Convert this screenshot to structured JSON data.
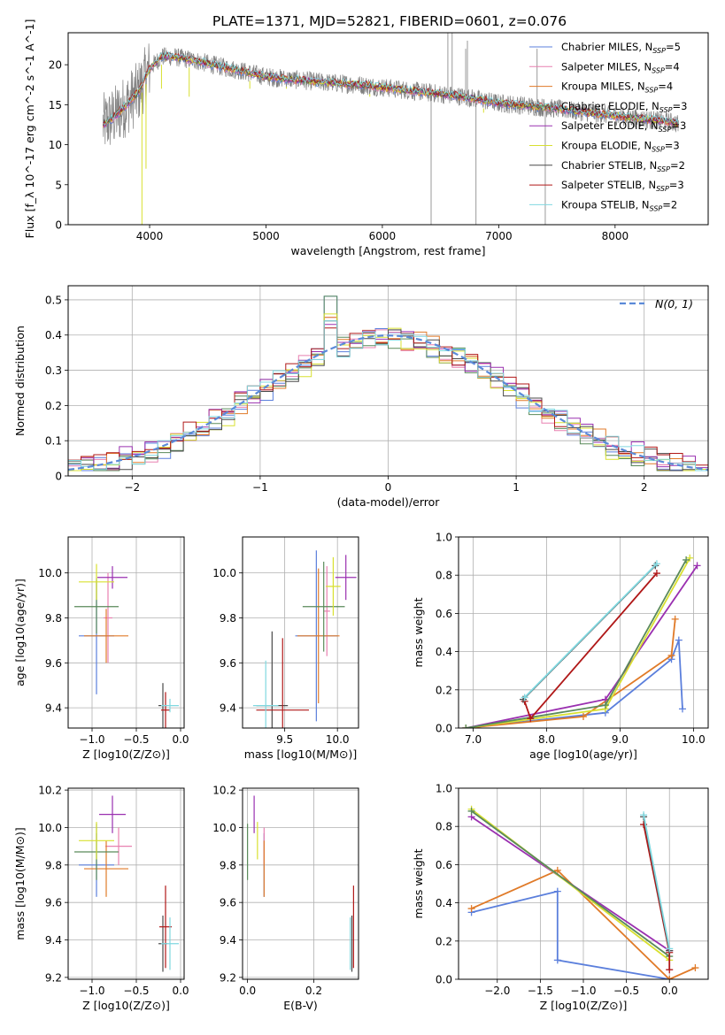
{
  "figure": {
    "title": "PLATE=1371, MJD=52821, FIBERID=0601, z=0.076"
  },
  "series_colors": {
    "Chabrier MILES": "#5b7fdc",
    "Salpeter MILES": "#e880b0",
    "Kroupa MILES": "#e07a28",
    "Chabrier ELODIE": "#5a8a5a",
    "Salpeter ELODIE": "#9a30b0",
    "Kroupa ELODIE": "#d8e030",
    "Chabrier STELIB": "#4a4a4a",
    "Salpeter STELIB": "#b01818",
    "Kroupa STELIB": "#80d8e0",
    "data": "#808080",
    "normal": "#5b8ad8"
  },
  "chart_data": [
    {
      "id": "spectrum",
      "type": "line",
      "xlabel": "wavelength [Angstrom, rest frame]",
      "ylabel": "Flux [f_λ 10^-17 erg cm^-2 s^-1 A^-1]",
      "xlim": [
        3300,
        8800
      ],
      "ylim": [
        0,
        24
      ],
      "xticks": [
        4000,
        5000,
        6000,
        7000,
        8000
      ],
      "yticks": [
        0,
        5,
        10,
        15,
        20
      ],
      "legend_position": "upper-right",
      "legend": [
        {
          "base": "Chabrier MILES, N",
          "sub": "SSP",
          "tail": "=5"
        },
        {
          "base": "Salpeter MILES, N",
          "sub": "SSP",
          "tail": "=4"
        },
        {
          "base": "Kroupa MILES, N",
          "sub": "SSP",
          "tail": "=4"
        },
        {
          "base": "Chabrier ELODIE, N",
          "sub": "SSP",
          "tail": "=3"
        },
        {
          "base": "Salpeter ELODIE, N",
          "sub": "SSP",
          "tail": "=3"
        },
        {
          "base": "Kroupa ELODIE, N",
          "sub": "SSP",
          "tail": "=3"
        },
        {
          "base": "Chabrier STELIB, N",
          "sub": "SSP",
          "tail": "=2"
        },
        {
          "base": "Salpeter STELIB, N",
          "sub": "SSP",
          "tail": "=3"
        },
        {
          "base": "Kroupa STELIB, N",
          "sub": "SSP",
          "tail": "=2"
        }
      ],
      "continuum": [
        [
          3600,
          12.5
        ],
        [
          3700,
          13.5
        ],
        [
          3800,
          15
        ],
        [
          3900,
          16.5
        ],
        [
          4000,
          19.5
        ],
        [
          4100,
          21
        ],
        [
          4200,
          21
        ],
        [
          4400,
          20.5
        ],
        [
          4600,
          19.8
        ],
        [
          4800,
          19.2
        ],
        [
          5000,
          18.5
        ],
        [
          5200,
          18.2
        ],
        [
          5500,
          17.8
        ],
        [
          5800,
          17.5
        ],
        [
          6100,
          17.0
        ],
        [
          6400,
          16.5
        ],
        [
          6700,
          16.0
        ],
        [
          7000,
          15.2
        ],
        [
          7300,
          14.8
        ],
        [
          7600,
          14.3
        ],
        [
          7900,
          13.8
        ],
        [
          8200,
          13.3
        ],
        [
          8500,
          12.8
        ],
        [
          8550,
          12.5
        ]
      ],
      "absorption_lines": [
        [
          3934,
          0
        ],
        [
          3969,
          7
        ],
        [
          4102,
          17
        ],
        [
          4340,
          16
        ],
        [
          4861,
          17
        ],
        [
          5175,
          17
        ],
        [
          5892,
          16
        ],
        [
          6870,
          14
        ]
      ],
      "data_spikes": [
        [
          6563,
          24
        ],
        [
          6600,
          24
        ],
        [
          6716,
          22
        ],
        [
          6731,
          23
        ],
        [
          7330,
          22
        ],
        [
          6419,
          0
        ],
        [
          6805,
          0
        ],
        [
          7400,
          0
        ]
      ]
    },
    {
      "id": "residuals",
      "type": "step-histogram",
      "xlabel": "(data-model)/error",
      "ylabel": "Normed distribution",
      "xlim": [
        -2.5,
        2.5
      ],
      "ylim": [
        0,
        0.54
      ],
      "xticks": [
        -2,
        -1,
        0,
        1,
        2
      ],
      "yticks": [
        0.0,
        0.1,
        0.2,
        0.3,
        0.4,
        0.5
      ],
      "legend_position": "upper-right",
      "gaussian_label": "N(0, 1)",
      "bin_width": 0.1,
      "bin_start": -2.5,
      "series_peaks": [
        {
          "name": "Chabrier MILES",
          "peak": 0.51,
          "spread": 0.97
        },
        {
          "name": "Salpeter MILES",
          "peak": 0.45,
          "spread": 0.98
        },
        {
          "name": "Kroupa MILES",
          "peak": 0.45,
          "spread": 1.02
        },
        {
          "name": "Chabrier ELODIE",
          "peak": 0.51,
          "spread": 0.99
        },
        {
          "name": "Salpeter ELODIE",
          "peak": 0.43,
          "spread": 1.04
        },
        {
          "name": "Kroupa ELODIE",
          "peak": 0.46,
          "spread": 0.97
        },
        {
          "name": "Chabrier STELIB",
          "peak": 0.44,
          "spread": 1.0
        },
        {
          "name": "Salpeter STELIB",
          "peak": 0.42,
          "spread": 1.03
        },
        {
          "name": "Kroupa STELIB",
          "peak": 0.44,
          "spread": 1.01
        }
      ]
    },
    {
      "id": "age-vs-z",
      "type": "errorbar",
      "xlabel": "Z [log10(Z/Z⊙)]",
      "ylabel": "age [log10(age/yr)]",
      "xlim": [
        -1.27,
        0.04
      ],
      "ylim": [
        9.31,
        10.16
      ],
      "xticks": [
        -1.0,
        -0.5,
        0.0
      ],
      "yticks": [
        9.4,
        9.6,
        9.8,
        10.0
      ],
      "points": [
        {
          "s": "Chabrier MILES",
          "x": -0.95,
          "xerr": 0.2,
          "y": 9.72,
          "yerr": 0.26
        },
        {
          "s": "Salpeter MILES",
          "x": -0.82,
          "xerr": 0.05,
          "y": 9.8,
          "yerr": 0.2
        },
        {
          "s": "Kroupa MILES",
          "x": -0.84,
          "xerr": 0.25,
          "y": 9.72,
          "yerr": 0.12
        },
        {
          "s": "Chabrier ELODIE",
          "x": -0.95,
          "xerr": 0.25,
          "y": 9.85,
          "yerr": 0.12
        },
        {
          "s": "Salpeter ELODIE",
          "x": -0.77,
          "xerr": 0.17,
          "y": 9.98,
          "yerr": 0.05
        },
        {
          "s": "Kroupa ELODIE",
          "x": -0.95,
          "xerr": 0.2,
          "y": 9.96,
          "yerr": 0.08
        },
        {
          "s": "Chabrier STELIB",
          "x": -0.2,
          "xerr": 0.05,
          "y": 9.41,
          "yerr": 0.1
        },
        {
          "s": "Salpeter STELIB",
          "x": -0.17,
          "xerr": 0.05,
          "y": 9.39,
          "yerr": 0.08
        },
        {
          "s": "Kroupa STELIB",
          "x": -0.12,
          "xerr": 0.1,
          "y": 9.41,
          "yerr": 0.03
        }
      ]
    },
    {
      "id": "age-vs-mass",
      "type": "errorbar",
      "xlabel": "mass [log10(M/M⊙)]",
      "ylabel": "",
      "xlim": [
        9.1,
        10.2
      ],
      "ylim": [
        9.31,
        10.16
      ],
      "xticks": [
        9.5,
        10.0
      ],
      "yticks": [
        9.4,
        9.6,
        9.8,
        10.0
      ],
      "points": [
        {
          "s": "Chabrier MILES",
          "x": 9.8,
          "xerr": 0.2,
          "y": 9.72,
          "yerr": 0.38
        },
        {
          "s": "Salpeter MILES",
          "x": 9.9,
          "xerr": 0.03,
          "y": 9.83,
          "yerr": 0.2
        },
        {
          "s": "Kroupa MILES",
          "x": 9.82,
          "xerr": 0.2,
          "y": 9.72,
          "yerr": 0.3
        },
        {
          "s": "Chabrier ELODIE",
          "x": 9.87,
          "xerr": 0.2,
          "y": 9.85,
          "yerr": 0.2
        },
        {
          "s": "Salpeter ELODIE",
          "x": 10.08,
          "xerr": 0.1,
          "y": 9.98,
          "yerr": 0.1
        },
        {
          "s": "Kroupa ELODIE",
          "x": 9.96,
          "xerr": 0.07,
          "y": 9.94,
          "yerr": 0.13
        },
        {
          "s": "Chabrier STELIB",
          "x": 9.38,
          "xerr": 0.15,
          "y": 9.41,
          "yerr": 0.33
        },
        {
          "s": "Salpeter STELIB",
          "x": 9.48,
          "xerr": 0.25,
          "y": 9.39,
          "yerr": 0.32
        },
        {
          "s": "Kroupa STELIB",
          "x": 9.32,
          "xerr": 0.12,
          "y": 9.41,
          "yerr": 0.2
        }
      ]
    },
    {
      "id": "mass-weight-vs-age",
      "type": "line",
      "xlabel": "age [log10(age/yr)]",
      "ylabel": "mass weight",
      "xlim": [
        6.8,
        10.2
      ],
      "ylim": [
        0,
        1.0
      ],
      "xticks": [
        7,
        8,
        9,
        10
      ],
      "yticks": [
        0.0,
        0.2,
        0.4,
        0.6,
        0.8,
        1.0
      ],
      "series": [
        {
          "name": "Chabrier MILES",
          "x": [
            6.9,
            8.8,
            9.7,
            9.8,
            9.85
          ],
          "y": [
            0.0,
            0.08,
            0.36,
            0.46,
            0.1
          ]
        },
        {
          "name": "Kroupa MILES",
          "x": [
            6.9,
            8.5,
            9.7,
            9.75
          ],
          "y": [
            0.0,
            0.06,
            0.38,
            0.57
          ]
        },
        {
          "name": "Salpeter ELODIE",
          "x": [
            6.9,
            8.8,
            10.05
          ],
          "y": [
            0.0,
            0.15,
            0.85
          ]
        },
        {
          "name": "Kroupa ELODIE",
          "x": [
            6.9,
            8.8,
            9.95
          ],
          "y": [
            0.0,
            0.1,
            0.89
          ]
        },
        {
          "name": "Chabrier ELODIE",
          "x": [
            6.9,
            8.8,
            9.9
          ],
          "y": [
            0.0,
            0.12,
            0.88
          ]
        },
        {
          "name": "Salpeter STELIB",
          "x": [
            7.7,
            7.78,
            9.5
          ],
          "y": [
            0.14,
            0.05,
            0.81
          ]
        },
        {
          "name": "Chabrier STELIB",
          "x": [
            7.68,
            9.48
          ],
          "y": [
            0.15,
            0.85
          ]
        },
        {
          "name": "Kroupa STELIB",
          "x": [
            7.7,
            9.5
          ],
          "y": [
            0.16,
            0.86
          ]
        }
      ]
    },
    {
      "id": "mass-vs-z",
      "type": "errorbar",
      "xlabel": "Z [log10(Z/Z⊙)]",
      "ylabel": "mass [log10(M/M⊙)]",
      "xlim": [
        -1.27,
        0.04
      ],
      "ylim": [
        9.19,
        10.21
      ],
      "xticks": [
        -1.0,
        -0.5,
        0.0
      ],
      "yticks": [
        9.2,
        9.4,
        9.6,
        9.8,
        10.0,
        10.2
      ],
      "points": [
        {
          "s": "Chabrier MILES",
          "x": -0.95,
          "xerr": 0.2,
          "y": 9.8,
          "yerr": 0.17
        },
        {
          "s": "Salpeter MILES",
          "x": -0.7,
          "xerr": 0.15,
          "y": 9.9,
          "yerr": 0.1
        },
        {
          "s": "Kroupa MILES",
          "x": -0.84,
          "xerr": 0.25,
          "y": 9.78,
          "yerr": 0.15
        },
        {
          "s": "Chabrier ELODIE",
          "x": -0.95,
          "xerr": 0.25,
          "y": 9.87,
          "yerr": 0.15
        },
        {
          "s": "Salpeter ELODIE",
          "x": -0.77,
          "xerr": 0.15,
          "y": 10.07,
          "yerr": 0.1
        },
        {
          "s": "Kroupa ELODIE",
          "x": -0.95,
          "xerr": 0.2,
          "y": 9.93,
          "yerr": 0.1
        },
        {
          "s": "Chabrier STELIB",
          "x": -0.2,
          "xerr": 0.05,
          "y": 9.38,
          "yerr": 0.15
        },
        {
          "s": "Salpeter STELIB",
          "x": -0.17,
          "xerr": 0.07,
          "y": 9.47,
          "yerr": 0.22
        },
        {
          "s": "Kroupa STELIB",
          "x": -0.12,
          "xerr": 0.1,
          "y": 9.38,
          "yerr": 0.14
        }
      ]
    },
    {
      "id": "mass-vs-ebv",
      "type": "errorbar",
      "xlabel": "E(B-V)",
      "ylabel": "",
      "xlim": [
        -0.015,
        0.335
      ],
      "ylim": [
        9.19,
        10.21
      ],
      "xticks": [
        0.0,
        0.2
      ],
      "yticks": [
        9.2,
        9.4,
        9.6,
        9.8,
        10.0,
        10.2
      ],
      "points": [
        {
          "s": "Chabrier MILES",
          "x": 0.05,
          "xerr": 0.0,
          "y": 9.8,
          "yerr": 0.17
        },
        {
          "s": "Salpeter MILES",
          "x": 0.05,
          "xerr": 0.0,
          "y": 9.9,
          "yerr": 0.1
        },
        {
          "s": "Kroupa MILES",
          "x": 0.05,
          "xerr": 0.0,
          "y": 9.78,
          "yerr": 0.15
        },
        {
          "s": "Chabrier ELODIE",
          "x": 0.0,
          "xerr": 0.0,
          "y": 9.87,
          "yerr": 0.15
        },
        {
          "s": "Salpeter ELODIE",
          "x": 0.02,
          "xerr": 0.0,
          "y": 10.07,
          "yerr": 0.1
        },
        {
          "s": "Kroupa ELODIE",
          "x": 0.03,
          "xerr": 0.0,
          "y": 9.93,
          "yerr": 0.1
        },
        {
          "s": "Chabrier STELIB",
          "x": 0.315,
          "xerr": 0.0,
          "y": 9.38,
          "yerr": 0.15
        },
        {
          "s": "Salpeter STELIB",
          "x": 0.32,
          "xerr": 0.0,
          "y": 9.47,
          "yerr": 0.22
        },
        {
          "s": "Kroupa STELIB",
          "x": 0.31,
          "xerr": 0.0,
          "y": 9.38,
          "yerr": 0.14
        }
      ]
    },
    {
      "id": "mass-weight-vs-z",
      "type": "line",
      "xlabel": "Z [log10(Z/Z⊙)]",
      "ylabel": "mass weight",
      "xlim": [
        -2.45,
        0.45
      ],
      "ylim": [
        0,
        1.0
      ],
      "xticks": [
        -2.0,
        -1.5,
        -1.0,
        -0.5,
        0.0
      ],
      "yticks": [
        0.0,
        0.2,
        0.4,
        0.6,
        0.8,
        1.0
      ],
      "series": [
        {
          "name": "Chabrier MILES",
          "x": [
            -2.3,
            -1.3,
            -1.3,
            0.0
          ],
          "y": [
            0.35,
            0.46,
            0.1,
            0.0
          ]
        },
        {
          "name": "Kroupa MILES",
          "x": [
            -2.3,
            -1.3,
            0.0,
            0.3
          ],
          "y": [
            0.37,
            0.57,
            0.0,
            0.06
          ]
        },
        {
          "name": "Salpeter ELODIE",
          "x": [
            -2.3,
            0.0
          ],
          "y": [
            0.85,
            0.15
          ]
        },
        {
          "name": "Kroupa ELODIE",
          "x": [
            -2.3,
            0.0
          ],
          "y": [
            0.89,
            0.1
          ]
        },
        {
          "name": "Chabrier ELODIE",
          "x": [
            -2.3,
            0.0
          ],
          "y": [
            0.88,
            0.12
          ]
        },
        {
          "name": "Salpeter STELIB",
          "x": [
            -0.3,
            0.0,
            0.0
          ],
          "y": [
            0.81,
            0.14,
            0.05
          ]
        },
        {
          "name": "Chabrier STELIB",
          "x": [
            -0.3,
            0.0
          ],
          "y": [
            0.85,
            0.15
          ]
        },
        {
          "name": "Kroupa STELIB",
          "x": [
            -0.3,
            0.0
          ],
          "y": [
            0.86,
            0.16
          ]
        }
      ]
    }
  ]
}
